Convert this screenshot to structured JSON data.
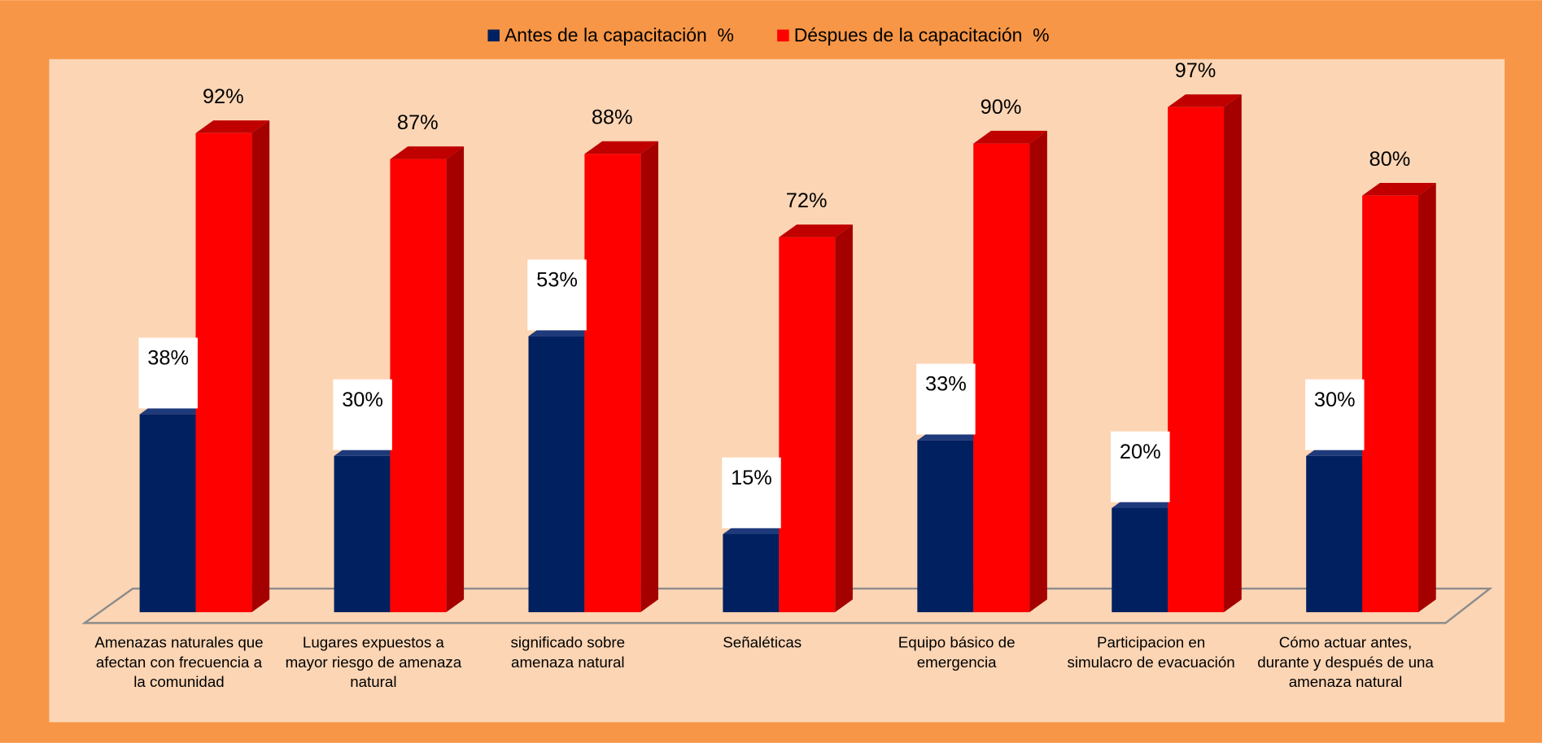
{
  "chart_data": {
    "type": "bar3d",
    "categories": [
      "Amenazas naturales que afectan con frecuencia a la comunidad",
      "Lugares expuestos a mayor riesgo de amenaza natural",
      "significado  sobre amenaza natural",
      "Señaléticas",
      "Equipo básico de emergencia",
      "Participacion en simulacro de evacuación",
      "Cómo actuar antes, durante y después de una amenaza  natural"
    ],
    "series": [
      {
        "name": "Antes de la capacitación  %",
        "color": "#002060",
        "values": [
          38,
          30,
          53,
          15,
          33,
          20,
          30
        ],
        "value_labels": [
          "38%",
          "30%",
          "53%",
          "15%",
          "33%",
          "20%",
          "30%"
        ]
      },
      {
        "name": "Déspues de la capacitación  %",
        "color": "#ff0000",
        "values": [
          92,
          87,
          88,
          72,
          90,
          97,
          80
        ],
        "value_labels": [
          "92%",
          "87%",
          "88%",
          "72%",
          "90%",
          "97%",
          "80%"
        ]
      }
    ],
    "legend": "top"
  }
}
